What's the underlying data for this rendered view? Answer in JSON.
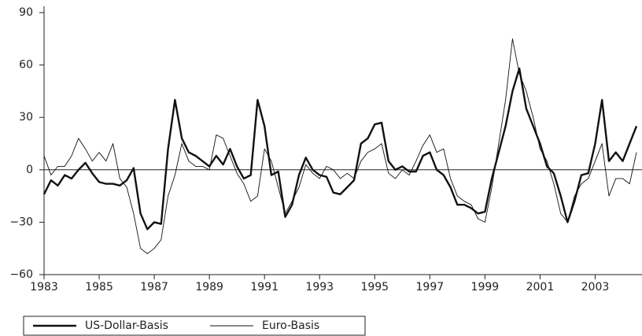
{
  "chart_data": {
    "type": "line",
    "x": [
      1983,
      1983.25,
      1983.5,
      1983.75,
      1984,
      1984.25,
      1984.5,
      1984.75,
      1985,
      1985.25,
      1985.5,
      1985.75,
      1986,
      1986.25,
      1986.5,
      1986.75,
      1987,
      1987.25,
      1987.5,
      1987.75,
      1988,
      1988.25,
      1988.5,
      1988.75,
      1989,
      1989.25,
      1989.5,
      1989.75,
      1990,
      1990.25,
      1990.5,
      1990.75,
      1991,
      1991.25,
      1991.5,
      1991.75,
      1992,
      1992.25,
      1992.5,
      1992.75,
      1993,
      1993.25,
      1993.5,
      1993.75,
      1994,
      1994.25,
      1994.5,
      1994.75,
      1995,
      1995.25,
      1995.5,
      1995.75,
      1996,
      1996.25,
      1996.5,
      1996.75,
      1997,
      1997.25,
      1997.5,
      1997.75,
      1998,
      1998.25,
      1998.5,
      1998.75,
      1999,
      1999.25,
      1999.5,
      1999.75,
      2000,
      2000.25,
      2000.5,
      2000.75,
      2001,
      2001.25,
      2001.5,
      2001.75,
      2002,
      2002.25,
      2002.5,
      2002.75,
      2003,
      2003.25,
      2003.5,
      2003.75,
      2004,
      2004.25,
      2004.5
    ],
    "series": [
      {
        "name": "US-Dollar-Basis",
        "color": "#111111",
        "width": 2.4,
        "values": [
          -14,
          -6,
          -9,
          -3,
          -5,
          0,
          4,
          -2,
          -7,
          -8,
          -8,
          -9,
          -6,
          1,
          -25,
          -34,
          -30,
          -31,
          12,
          40,
          18,
          10,
          8,
          5,
          2,
          8,
          3,
          12,
          2,
          -5,
          -3,
          40,
          25,
          -3,
          -1,
          -27,
          -20,
          -3,
          7,
          0,
          -3,
          -4,
          -13,
          -14,
          -10,
          -6,
          15,
          18,
          26,
          27,
          5,
          0,
          2,
          -1,
          -1,
          8,
          10,
          0,
          -3,
          -10,
          -20,
          -20,
          -22,
          -25,
          -24,
          -5,
          10,
          25,
          45,
          58,
          35,
          25,
          15,
          2,
          -2,
          -15,
          -30,
          -18,
          -3,
          -2,
          15,
          40,
          5,
          10,
          5,
          15,
          25
        ]
      },
      {
        "name": "Euro-Basis",
        "color": "#111111",
        "width": 0.9,
        "values": [
          8,
          -3,
          2,
          2,
          8,
          18,
          12,
          5,
          10,
          5,
          15,
          -5,
          -10,
          -25,
          -45,
          -48,
          -45,
          -40,
          -15,
          -3,
          15,
          5,
          2,
          2,
          0,
          20,
          18,
          8,
          -2,
          -8,
          -18,
          -15,
          12,
          5,
          -10,
          -25,
          -18,
          -10,
          3,
          -2,
          -5,
          2,
          0,
          -5,
          -2,
          -5,
          5,
          10,
          12,
          15,
          -2,
          -5,
          0,
          -3,
          5,
          14,
          20,
          10,
          12,
          -5,
          -15,
          -18,
          -20,
          -28,
          -30,
          -10,
          15,
          40,
          75,
          55,
          45,
          30,
          12,
          5,
          -8,
          -25,
          -30,
          -15,
          -8,
          -5,
          5,
          15,
          -15,
          -5,
          -5,
          -8,
          10
        ]
      }
    ],
    "xlim": [
      1983,
      2004.7
    ],
    "xticks": [
      1983,
      1985,
      1987,
      1989,
      1991,
      1993,
      1995,
      1997,
      1999,
      2001,
      2003
    ],
    "ylim": [
      -60,
      90
    ],
    "yticks": [
      {
        "value": -60,
        "label": "−60"
      },
      {
        "value": -30,
        "label": "−30"
      },
      0,
      30,
      60,
      90
    ],
    "grid": false
  }
}
